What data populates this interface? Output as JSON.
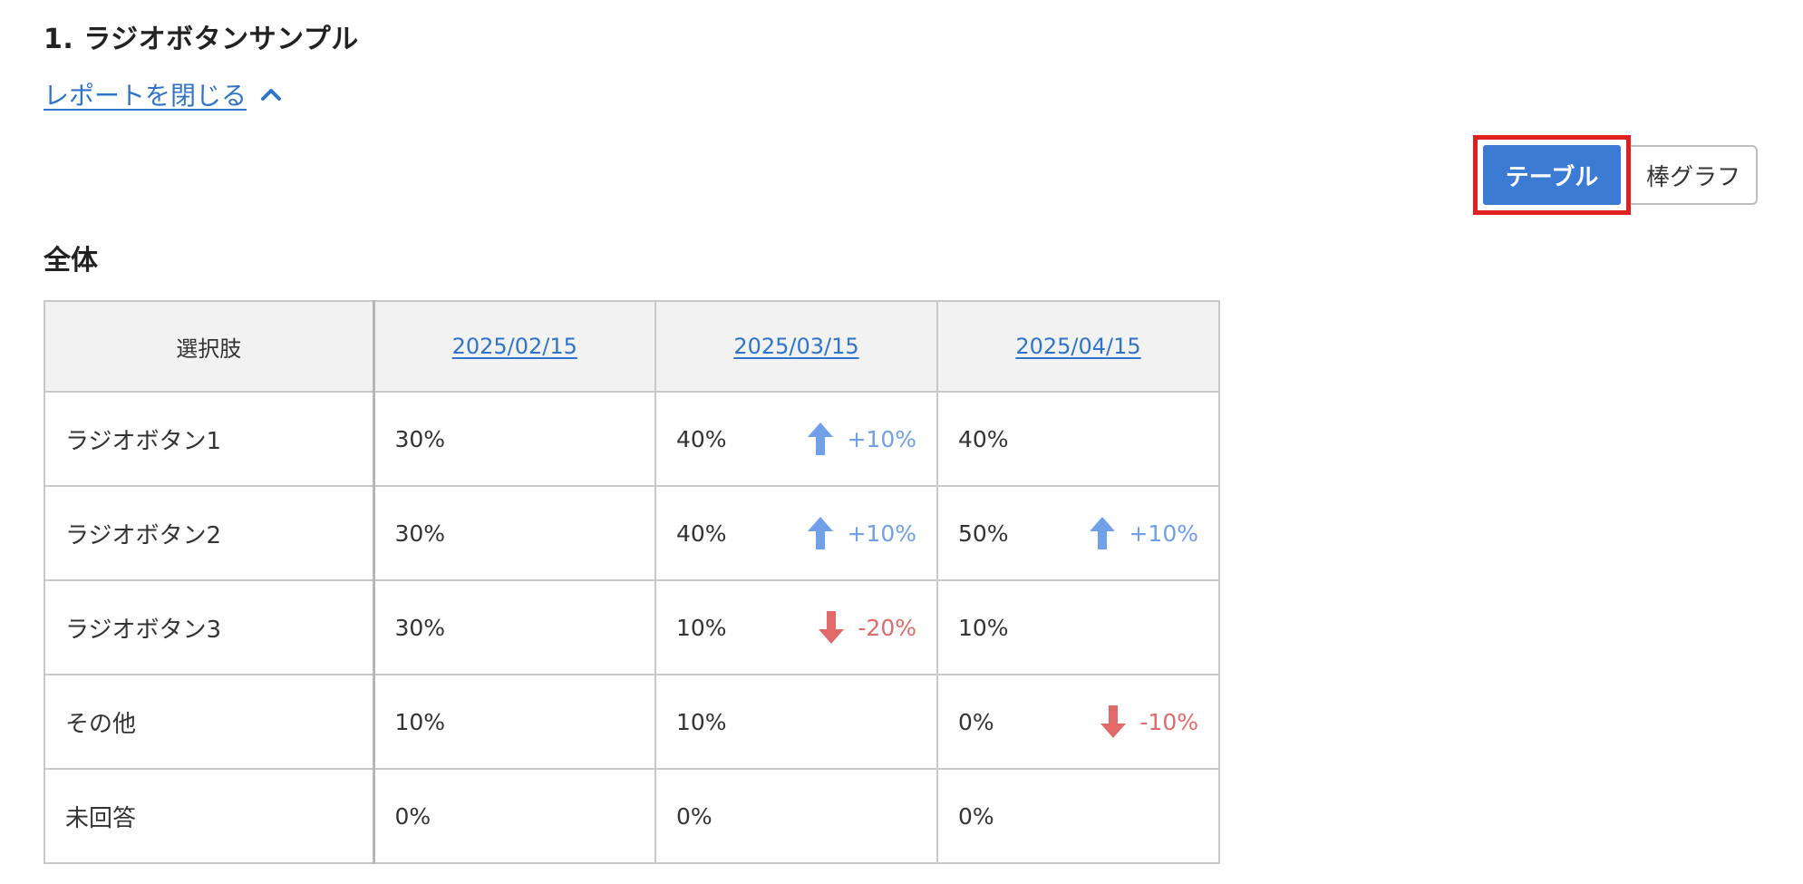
{
  "question": {
    "title": "1. ラジオボタンサンプル"
  },
  "report_toggle": {
    "label": "レポートを閉じる",
    "icon": "chevron-up-icon"
  },
  "view_switch": {
    "table_label": "テーブル",
    "bar_label": "棒グラフ",
    "selected": "テーブル"
  },
  "section": {
    "title": "全体"
  },
  "table": {
    "headers": [
      "選択肢",
      "2025/02/15",
      "2025/03/15",
      "2025/04/15"
    ],
    "rows": [
      {
        "label": "ラジオボタン1",
        "cells": [
          {
            "value": "30%"
          },
          {
            "value": "40%",
            "change": "+10%",
            "dir": "up"
          },
          {
            "value": "40%"
          }
        ]
      },
      {
        "label": "ラジオボタン2",
        "cells": [
          {
            "value": "30%"
          },
          {
            "value": "40%",
            "change": "+10%",
            "dir": "up"
          },
          {
            "value": "50%",
            "change": "+10%",
            "dir": "up"
          }
        ]
      },
      {
        "label": "ラジオボタン3",
        "cells": [
          {
            "value": "30%"
          },
          {
            "value": "10%",
            "change": "-20%",
            "dir": "down"
          },
          {
            "value": "10%"
          }
        ]
      },
      {
        "label": "その他",
        "cells": [
          {
            "value": "10%"
          },
          {
            "value": "10%"
          },
          {
            "value": "0%",
            "change": "-10%",
            "dir": "down"
          }
        ]
      },
      {
        "label": "未回答",
        "cells": [
          {
            "value": "0%"
          },
          {
            "value": "0%"
          },
          {
            "value": "0%"
          }
        ]
      }
    ]
  },
  "colors": {
    "link": "#2f74c7",
    "primary_button": "#3b7bd4",
    "highlight": "#e0201e",
    "up": "#6fa0e8",
    "down": "#e06a6a"
  }
}
